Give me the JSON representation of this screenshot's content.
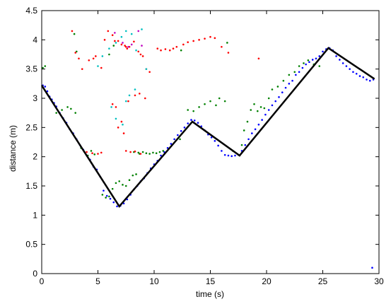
{
  "chart_data": {
    "type": "scatter",
    "title": "",
    "xlabel": "time (s)",
    "ylabel": "distance (m)",
    "xlim": [
      0,
      30
    ],
    "ylim": [
      0,
      4.5
    ],
    "xticks": [
      "0",
      "5",
      "10",
      "15",
      "20",
      "25",
      "30"
    ],
    "yticks": [
      "0",
      "0.5",
      "1",
      "1.5",
      "2",
      "2.5",
      "3",
      "3.5",
      "4",
      "4.5"
    ],
    "grid": false,
    "legend": "none",
    "series": [
      {
        "kind": "line",
        "color": "#000000",
        "x": [
          0,
          6.9,
          13.4,
          17.6,
          25.5,
          29.6
        ],
        "y": [
          3.22,
          1.15,
          2.6,
          2.02,
          3.86,
          3.33
        ]
      },
      {
        "kind": "points",
        "color": "#0000ff",
        "x": [
          0.1,
          0.3,
          0.5,
          0.7,
          0.9,
          1.1,
          1.3,
          1.6,
          1.9,
          2.2,
          2.5,
          2.8,
          3.1,
          3.4,
          3.7,
          4.0,
          4.3,
          4.6,
          4.9,
          5.2,
          5.5,
          5.8,
          6.1,
          6.4,
          6.7,
          7.0,
          7.3,
          7.6,
          7.9,
          8.2,
          8.5,
          8.8,
          9.1,
          9.4,
          9.7,
          10.0,
          10.3,
          10.6,
          10.9,
          11.2,
          11.5,
          11.8,
          12.1,
          12.4,
          12.7,
          13.0,
          13.3,
          13.6,
          13.9,
          14.2,
          14.5,
          14.8,
          15.1,
          15.4,
          15.7,
          16.0,
          16.3,
          16.6,
          16.9,
          17.2,
          17.5,
          17.8,
          18.1,
          18.4,
          18.7,
          19.0,
          19.3,
          19.6,
          19.9,
          20.2,
          20.5,
          20.8,
          21.1,
          21.4,
          21.7,
          22.0,
          22.3,
          22.6,
          22.9,
          23.2,
          23.5,
          23.8,
          24.1,
          24.4,
          24.7,
          25.0,
          25.3,
          25.6,
          25.9,
          26.2,
          26.5,
          26.8,
          27.1,
          27.4,
          27.7,
          28.0,
          28.3,
          28.6,
          28.9,
          29.2,
          29.5,
          29.4
        ],
        "y": [
          3.22,
          3.2,
          3.12,
          3.03,
          2.98,
          2.92,
          2.86,
          2.75,
          2.66,
          2.58,
          2.47,
          2.4,
          2.3,
          2.2,
          2.12,
          2.02,
          1.95,
          1.83,
          1.78,
          1.66,
          1.42,
          1.33,
          1.28,
          1.22,
          1.15,
          1.16,
          1.2,
          1.27,
          1.35,
          1.44,
          1.5,
          1.58,
          1.63,
          1.72,
          1.8,
          1.87,
          1.93,
          2.02,
          2.08,
          2.15,
          2.22,
          2.3,
          2.37,
          2.44,
          2.5,
          2.57,
          2.63,
          2.62,
          2.58,
          2.52,
          2.45,
          2.38,
          2.33,
          2.27,
          2.19,
          2.1,
          2.03,
          2.02,
          2.01,
          2.02,
          2.03,
          2.1,
          2.2,
          2.3,
          2.4,
          2.47,
          2.55,
          2.63,
          2.72,
          2.8,
          2.88,
          2.95,
          3.02,
          3.1,
          3.18,
          3.25,
          3.3,
          3.4,
          3.45,
          3.52,
          3.58,
          3.62,
          3.66,
          3.68,
          3.72,
          3.8,
          3.84,
          3.86,
          3.82,
          3.72,
          3.66,
          3.6,
          3.55,
          3.5,
          3.45,
          3.42,
          3.38,
          3.36,
          3.32,
          3.3,
          3.32,
          0.1
        ]
      },
      {
        "kind": "points",
        "color": "#008000",
        "x": [
          0.1,
          0.3,
          1.3,
          1.8,
          2.3,
          2.6,
          3.0,
          3.5,
          3.8,
          4.1,
          4.4,
          4.7,
          5.4,
          5.7,
          6.0,
          6.3,
          6.6,
          6.9,
          7.2,
          7.5,
          7.8,
          8.1,
          8.4,
          8.7,
          8.2,
          8.6,
          9.0,
          9.3,
          9.6,
          9.9,
          10.2,
          10.5,
          10.8,
          12.3,
          13.0,
          13.5,
          14.0,
          14.5,
          15.0,
          15.5,
          15.8,
          16.3,
          16.5,
          17.0,
          17.8,
          18.0,
          18.3,
          18.6,
          18.9,
          19.2,
          19.5,
          19.8,
          20.2,
          20.5,
          21.0,
          21.5,
          22.0,
          22.5,
          22.9,
          23.3,
          23.7,
          24.2,
          24.7,
          12.4,
          6.0,
          6.4,
          2.9,
          3.1
        ],
        "y": [
          3.52,
          3.55,
          2.75,
          2.8,
          2.85,
          2.82,
          2.75,
          2.15,
          2.08,
          2.02,
          2.1,
          2.04,
          1.35,
          1.3,
          1.32,
          1.45,
          1.55,
          1.58,
          1.52,
          1.5,
          1.6,
          1.68,
          1.7,
          2.05,
          2.08,
          2.07,
          2.08,
          2.06,
          2.05,
          2.07,
          2.06,
          2.08,
          2.1,
          2.3,
          2.8,
          2.78,
          2.85,
          2.9,
          2.95,
          2.88,
          3.0,
          2.95,
          3.95,
          2.1,
          2.2,
          2.45,
          2.6,
          2.8,
          2.9,
          2.78,
          2.85,
          2.83,
          3.0,
          3.15,
          3.2,
          3.3,
          3.4,
          3.45,
          3.55,
          3.6,
          3.65,
          3.58,
          3.55,
          3.82,
          3.75,
          3.9,
          4.1,
          3.8
        ]
      },
      {
        "kind": "points",
        "color": "#ff0000",
        "x": [
          2.7,
          3.0,
          3.3,
          3.6,
          4.2,
          4.6,
          4.8,
          5.3,
          5.6,
          5.9,
          6.3,
          6.5,
          6.8,
          7.1,
          7.4,
          7.6,
          7.5,
          7.8,
          8.2,
          8.6,
          8.8,
          9.0,
          9.3,
          9.6,
          10.3,
          10.6,
          11.0,
          11.4,
          11.7,
          12.0,
          12.6,
          13.0,
          13.5,
          14.0,
          14.5,
          15.0,
          15.4,
          16.0,
          4.0,
          4.5,
          5.0,
          5.3,
          7.5,
          7.9,
          8.3,
          8.8,
          6.3,
          6.6,
          7.1,
          7.7,
          8.3,
          8.7,
          9.2,
          16.6,
          19.3,
          6.8,
          7.3
        ],
        "y": [
          4.15,
          3.78,
          3.68,
          3.5,
          3.65,
          3.68,
          3.72,
          3.52,
          4.0,
          4.15,
          4.08,
          3.98,
          3.98,
          3.92,
          3.9,
          3.85,
          3.88,
          3.88,
          3.97,
          3.8,
          3.75,
          3.72,
          3.5,
          3.45,
          3.85,
          3.82,
          3.84,
          3.82,
          3.85,
          3.88,
          3.92,
          3.96,
          3.98,
          4.0,
          4.02,
          4.05,
          4.03,
          3.88,
          2.08,
          2.06,
          2.05,
          2.07,
          2.1,
          2.08,
          2.09,
          2.05,
          2.9,
          2.85,
          2.6,
          2.95,
          3.05,
          3.08,
          3.0,
          3.78,
          3.68,
          2.5,
          2.4
        ]
      },
      {
        "kind": "points",
        "color": "#00c0c0",
        "x": [
          5.0,
          5.4,
          6.0,
          6.6,
          7.1,
          7.5,
          8.0,
          8.4,
          8.9,
          9.3,
          7.5,
          7.8,
          8.3,
          6.2,
          6.6,
          7.2
        ],
        "y": [
          3.55,
          3.72,
          3.85,
          3.95,
          4.05,
          4.15,
          4.1,
          3.82,
          4.18,
          3.5,
          2.95,
          3.05,
          3.15,
          2.85,
          2.65,
          2.55
        ]
      },
      {
        "kind": "points",
        "color": "#c000c0",
        "x": [
          6.5,
          7.2,
          7.7,
          8.0,
          8.6,
          8.9
        ],
        "y": [
          4.12,
          3.95,
          3.88,
          3.92,
          4.15,
          3.9
        ]
      }
    ]
  }
}
